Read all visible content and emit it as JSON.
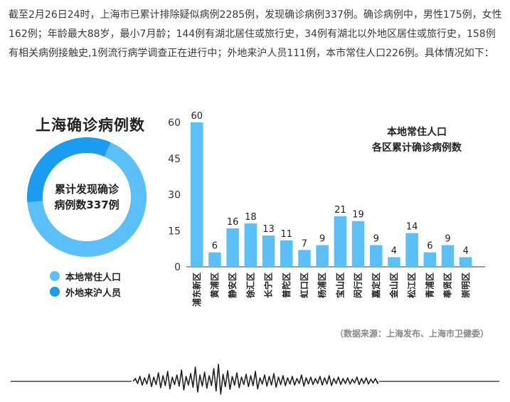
{
  "intro_text": "截至2月26日24时，上海市已累计排除疑似病例2285例，发现确诊病例337例。确诊病例中，男性175例，女性162例；年龄最大88岁，最小7月龄；144例有湖北居住或旅行史，34例有湖北以外地区居住或旅行史，158例有相关病例接触史,1例流行病学调查正在进行中；外地来沪人员111例，本市常住人口226例。具体情况如下：",
  "donut": {
    "title": "上海确诊病例数",
    "center_line1": "累计发现确诊",
    "center_line2": "病例数337例",
    "segments": [
      {
        "label": "本地常住人口",
        "value": 226,
        "color": "#5bc0f8"
      },
      {
        "label": "外地来沪人员",
        "value": 111,
        "color": "#1a9cf0"
      }
    ]
  },
  "chart_data": {
    "type": "bar",
    "title_line1": "本地常住人口",
    "title_line2": "各区累计确诊病例数",
    "categories": [
      "浦东新区",
      "黄浦区",
      "静安区",
      "徐汇区",
      "长宁区",
      "普陀区",
      "虹口区",
      "杨浦区",
      "宝山区",
      "闵行区",
      "嘉定区",
      "金山区",
      "松江区",
      "青浦区",
      "奉贤区",
      "崇明区"
    ],
    "values": [
      60,
      6,
      16,
      18,
      13,
      11,
      7,
      9,
      21,
      19,
      9,
      4,
      14,
      6,
      9,
      4
    ],
    "yticks": [
      0,
      15,
      30,
      45,
      60
    ],
    "ylim": [
      0,
      60
    ],
    "bar_color": "#5bc0f8"
  },
  "source": "（数据来源：上海发布、上海市卫健委）"
}
